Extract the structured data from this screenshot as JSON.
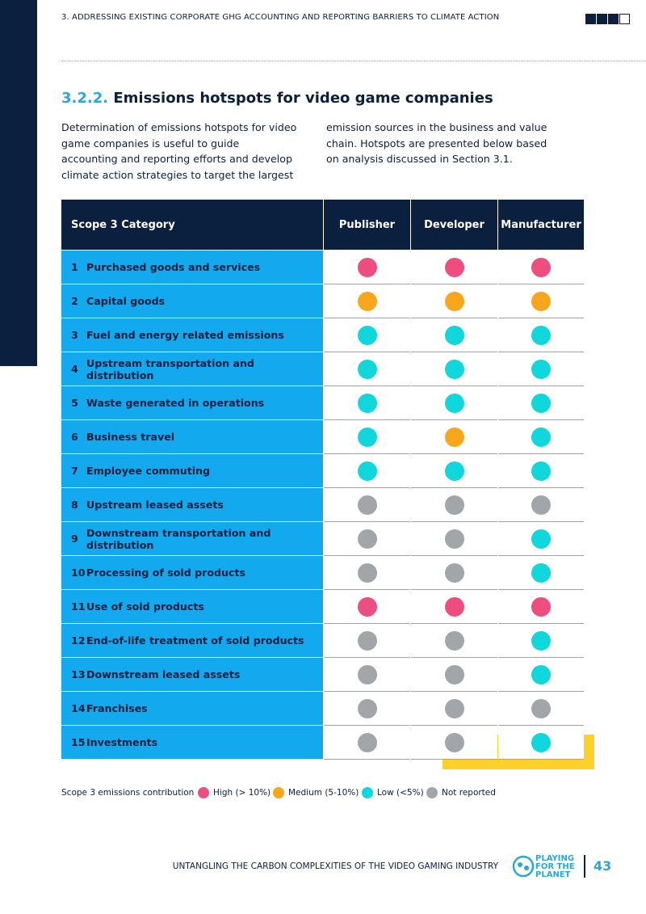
{
  "header": {
    "running_title": "3. ADDRESSING EXISTING CORPORATE GHG ACCOUNTING AND REPORTING BARRIERS TO CLIMATE ACTION"
  },
  "section": {
    "number": "3.2.2.",
    "title": "Emissions hotspots for video game companies",
    "body": "Determination of emissions hotspots for video game companies is useful to guide accounting and reporting efforts and develop climate action strategies to target the largest emission sources in the business and value chain. Hotspots are presented below based on analysis discussed in Section 3.1."
  },
  "table": {
    "columns": [
      "Scope 3 Category",
      "Publisher",
      "Developer",
      "Manufacturer"
    ],
    "rows": [
      {
        "number": 1,
        "label": "Purchased goods and services",
        "hotspots": [
          0,
          0,
          0
        ]
      },
      {
        "number": 2,
        "label": "Capital goods",
        "hotspots": [
          1,
          1,
          1
        ]
      },
      {
        "number": 3,
        "label": "Fuel and energy related emissions",
        "hotspots": [
          2,
          2,
          2
        ]
      },
      {
        "number": 4,
        "label": "Upstream transportation and distribution",
        "hotspots": [
          2,
          2,
          2
        ]
      },
      {
        "number": 5,
        "label": "Waste generated in operations",
        "hotspots": [
          2,
          2,
          2
        ]
      },
      {
        "number": 6,
        "label": "Business travel",
        "hotspots": [
          2,
          1,
          2
        ]
      },
      {
        "number": 7,
        "label": "Employee commuting",
        "hotspots": [
          2,
          2,
          2
        ]
      },
      {
        "number": 8,
        "label": "Upstream leased assets",
        "hotspots": [
          3,
          3,
          3
        ]
      },
      {
        "number": 9,
        "label": "Downstream transportation and distribution",
        "hotspots": [
          3,
          3,
          2
        ]
      },
      {
        "number": 10,
        "label": "Processing of sold products",
        "hotspots": [
          3,
          3,
          2
        ]
      },
      {
        "number": 11,
        "label": "Use of sold products",
        "hotspots": [
          0,
          0,
          0
        ]
      },
      {
        "number": 12,
        "label": "End-of-life treatment of sold products",
        "hotspots": [
          3,
          3,
          2
        ]
      },
      {
        "number": 13,
        "label": "Downstream leased assets",
        "hotspots": [
          3,
          3,
          2
        ]
      },
      {
        "number": 14,
        "label": "Franchises",
        "hotspots": [
          3,
          3,
          3
        ]
      },
      {
        "number": 15,
        "label": "Investments",
        "hotspots": [
          3,
          3,
          2
        ]
      }
    ]
  },
  "legend": {
    "title": "Scope 3 emissions contribution",
    "items": [
      {
        "label": "High (> 10%)",
        "color": "#ee4d80"
      },
      {
        "label": "Medium (5-10%)",
        "color": "#f8a61c"
      },
      {
        "label": "Low (<5%)",
        "color": "#10d7dc"
      },
      {
        "label": "Not reported",
        "color": "#a2a6aa"
      }
    ]
  },
  "footer": {
    "text": "UNTANGLING THE CARBON COMPLEXITIES OF THE VIDEO GAMING INDUSTRY",
    "logo": [
      "PLAYING",
      "FOR THE",
      "PLANET"
    ],
    "page": 43
  }
}
